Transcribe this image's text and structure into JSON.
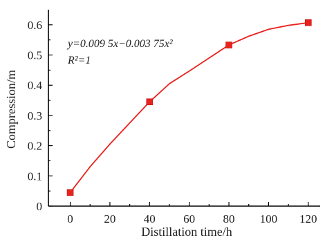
{
  "chart_data": {
    "type": "line",
    "title": "",
    "xlabel": "Distillation time/h",
    "ylabel": "Compression/m",
    "xlim": [
      -11,
      126
    ],
    "ylim": [
      0,
      0.65
    ],
    "x_ticks": [
      0,
      20,
      40,
      60,
      80,
      100,
      120
    ],
    "x_tick_labels": [
      "0",
      "20",
      "40",
      "60",
      "80",
      "100",
      "120"
    ],
    "y_ticks": [
      0,
      0.1,
      0.2,
      0.3,
      0.4,
      0.5,
      0.6
    ],
    "y_tick_labels": [
      "0",
      "0.1",
      "0.2",
      "0.3",
      "0.4",
      "0.5",
      "0.6"
    ],
    "grid": false,
    "series": [
      {
        "x": [
          0,
          40,
          80,
          120
        ],
        "y": [
          0.045,
          0.345,
          0.533,
          0.607
        ],
        "color": "#e8231e",
        "marker": "square"
      }
    ],
    "fit_curve_points": {
      "x": [
        0,
        10,
        20,
        30,
        40,
        50,
        60,
        70,
        80,
        90,
        100,
        110,
        120
      ],
      "y": [
        0.045,
        0.13,
        0.205,
        0.275,
        0.345,
        0.405,
        0.447,
        0.49,
        0.533,
        0.562,
        0.585,
        0.598,
        0.607
      ]
    },
    "annotation": {
      "equation": "y=0.009 5x−0.003 75x²",
      "r2": "R²=1"
    }
  }
}
